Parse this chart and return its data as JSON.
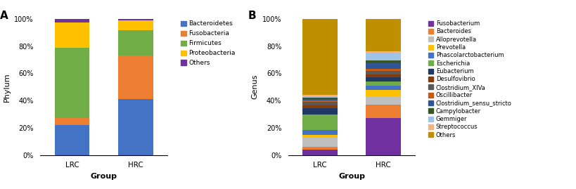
{
  "phylum": {
    "groups": [
      "LRC",
      "HRC"
    ],
    "categories": [
      "Bacteroidetes",
      "Fusobacteria",
      "Firmicutes",
      "Proteobacteria",
      "Others"
    ],
    "colors": [
      "#4472C4",
      "#ED7D31",
      "#70AD47",
      "#FFC000",
      "#7030A0"
    ],
    "LRC": [
      0.22,
      0.05,
      0.52,
      0.185,
      0.025
    ],
    "HRC": [
      0.41,
      0.32,
      0.185,
      0.075,
      0.01
    ]
  },
  "genus": {
    "groups": [
      "LRC",
      "HRC"
    ],
    "categories": [
      "Fusobacterium",
      "Bacteroides",
      "Alloprevotella",
      "Prevotella",
      "Phascolarctobacterium",
      "Escherichia",
      "Eubacterium",
      "Desulfovibrio",
      "Clostridium_XIVa",
      "Oscillibacter",
      "Clostridium_sensu_stricto",
      "Campylobacter",
      "Gemmiger",
      "Streptococcus",
      "Others"
    ],
    "colors": [
      "#7030A0",
      "#ED7D31",
      "#BFBFBF",
      "#FFC000",
      "#4472C4",
      "#70AD47",
      "#1F3864",
      "#843C0C",
      "#595959",
      "#C55A11",
      "#2F5597",
      "#375623",
      "#9DC3E6",
      "#F4B183",
      "#BF8F00"
    ],
    "LRC": [
      0.04,
      0.02,
      0.065,
      0.02,
      0.04,
      0.11,
      0.05,
      0.02,
      0.025,
      0.01,
      0.01,
      0.01,
      0.01,
      0.01,
      0.56
    ],
    "HRC": [
      0.27,
      0.1,
      0.06,
      0.05,
      0.03,
      0.03,
      0.03,
      0.02,
      0.025,
      0.02,
      0.04,
      0.02,
      0.055,
      0.01,
      0.27
    ]
  },
  "panel_a_label": "A",
  "panel_b_label": "B",
  "xlabel": "Group",
  "ylabel_a": "Phylum",
  "ylabel_b": "Genus",
  "yticks": [
    0,
    0.2,
    0.4,
    0.6,
    0.8,
    1.0
  ],
  "yticklabels": [
    "0%",
    "20%",
    "40%",
    "60%",
    "80%",
    "100%"
  ],
  "background_color": "#FFFFFF"
}
